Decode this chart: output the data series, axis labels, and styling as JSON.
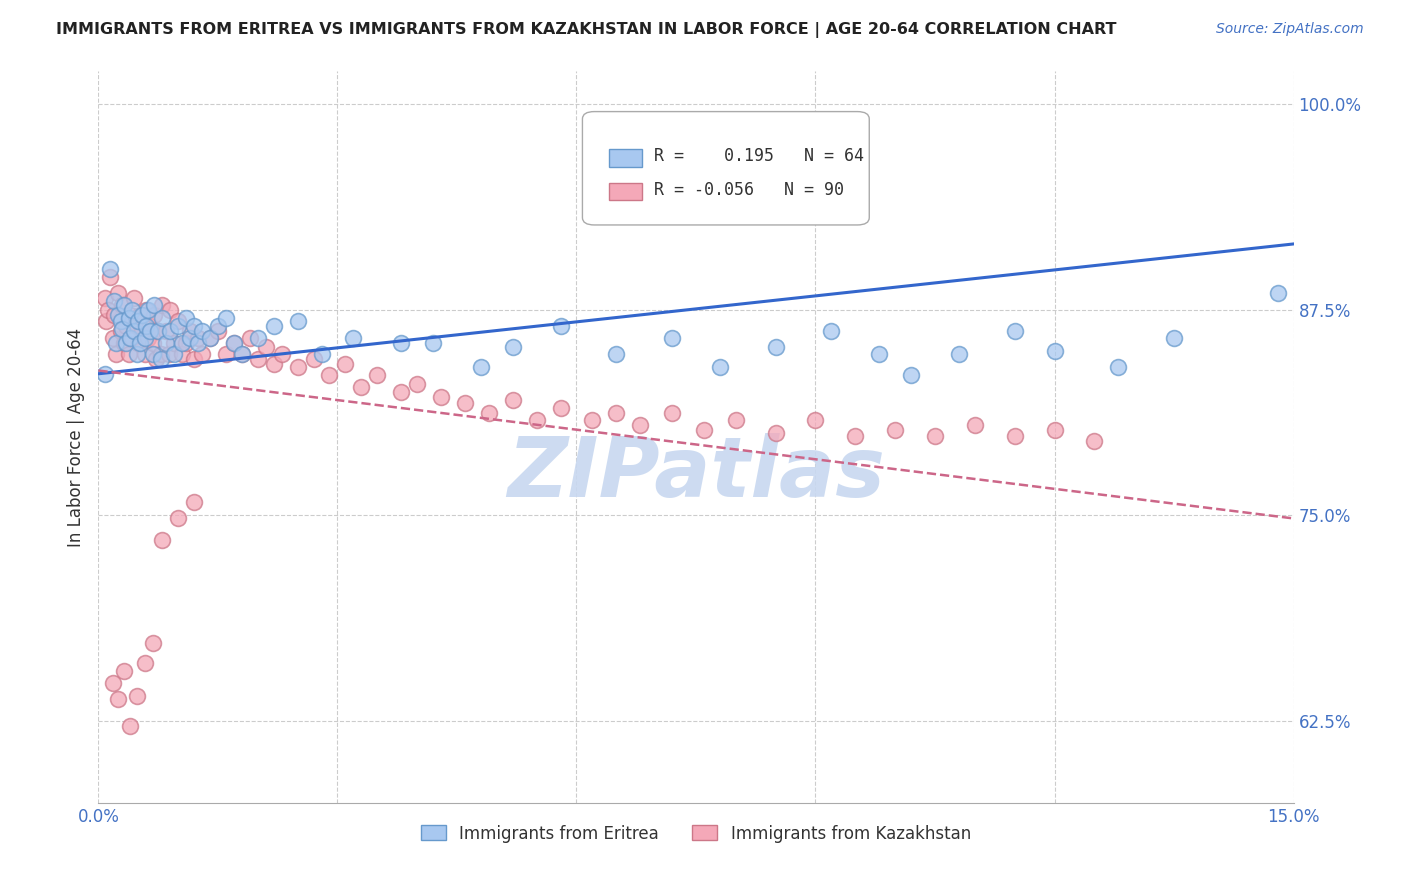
{
  "title": "IMMIGRANTS FROM ERITREA VS IMMIGRANTS FROM KAZAKHSTAN IN LABOR FORCE | AGE 20-64 CORRELATION CHART",
  "source": "Source: ZipAtlas.com",
  "ylabel": "In Labor Force | Age 20-64",
  "xlim": [
    0.0,
    0.15
  ],
  "ylim": [
    0.575,
    1.02
  ],
  "yticks": [
    0.625,
    0.75,
    0.875,
    1.0
  ],
  "yticklabels": [
    "62.5%",
    "75.0%",
    "87.5%",
    "100.0%"
  ],
  "xtick_positions": [
    0.0,
    0.03,
    0.06,
    0.09,
    0.12,
    0.15
  ],
  "grid_color": "#cccccc",
  "background_color": "#ffffff",
  "axis_color": "#4472c4",
  "eritrea_color": "#a8c8f0",
  "eritrea_edge": "#6699cc",
  "kazakhstan_color": "#f4a8b8",
  "kazakhstan_edge": "#cc7788",
  "eritrea_R": 0.195,
  "eritrea_N": 64,
  "kazakhstan_R": -0.056,
  "kazakhstan_N": 90,
  "eritrea_line_color": "#3366cc",
  "kazakhstan_line_color": "#cc6688",
  "watermark": "ZIPatlas",
  "watermark_color": "#c8d8f0",
  "eritrea_x": [
    0.0008,
    0.0015,
    0.002,
    0.0022,
    0.0025,
    0.0028,
    0.003,
    0.0032,
    0.0035,
    0.0038,
    0.004,
    0.0042,
    0.0045,
    0.0048,
    0.005,
    0.0052,
    0.0055,
    0.0058,
    0.006,
    0.0062,
    0.0065,
    0.0068,
    0.007,
    0.0075,
    0.0078,
    0.008,
    0.0085,
    0.009,
    0.0095,
    0.01,
    0.0105,
    0.011,
    0.0115,
    0.012,
    0.0125,
    0.013,
    0.014,
    0.015,
    0.016,
    0.017,
    0.018,
    0.02,
    0.022,
    0.025,
    0.028,
    0.032,
    0.038,
    0.042,
    0.048,
    0.052,
    0.058,
    0.065,
    0.072,
    0.078,
    0.085,
    0.092,
    0.098,
    0.102,
    0.108,
    0.115,
    0.12,
    0.128,
    0.135,
    0.148
  ],
  "eritrea_y": [
    0.836,
    0.9,
    0.88,
    0.855,
    0.872,
    0.868,
    0.863,
    0.878,
    0.855,
    0.87,
    0.858,
    0.875,
    0.862,
    0.848,
    0.868,
    0.855,
    0.872,
    0.858,
    0.865,
    0.875,
    0.862,
    0.848,
    0.878,
    0.862,
    0.845,
    0.87,
    0.855,
    0.862,
    0.848,
    0.865,
    0.855,
    0.87,
    0.858,
    0.865,
    0.855,
    0.862,
    0.858,
    0.865,
    0.87,
    0.855,
    0.848,
    0.858,
    0.865,
    0.868,
    0.848,
    0.858,
    0.855,
    0.855,
    0.84,
    0.852,
    0.865,
    0.848,
    0.858,
    0.84,
    0.852,
    0.862,
    0.848,
    0.835,
    0.848,
    0.862,
    0.85,
    0.84,
    0.858,
    0.885
  ],
  "kazakhstan_x": [
    0.0008,
    0.001,
    0.0012,
    0.0015,
    0.0018,
    0.002,
    0.0022,
    0.0025,
    0.0028,
    0.003,
    0.0032,
    0.0035,
    0.0038,
    0.004,
    0.0042,
    0.0045,
    0.0048,
    0.005,
    0.0052,
    0.0055,
    0.0058,
    0.006,
    0.0062,
    0.0065,
    0.0068,
    0.007,
    0.0072,
    0.0075,
    0.0078,
    0.008,
    0.0085,
    0.0088,
    0.009,
    0.0095,
    0.01,
    0.0105,
    0.011,
    0.0115,
    0.012,
    0.0125,
    0.013,
    0.014,
    0.015,
    0.016,
    0.017,
    0.018,
    0.019,
    0.02,
    0.021,
    0.022,
    0.023,
    0.025,
    0.027,
    0.029,
    0.031,
    0.033,
    0.035,
    0.038,
    0.04,
    0.043,
    0.046,
    0.049,
    0.052,
    0.055,
    0.058,
    0.062,
    0.065,
    0.068,
    0.072,
    0.076,
    0.08,
    0.085,
    0.09,
    0.095,
    0.1,
    0.105,
    0.11,
    0.115,
    0.12,
    0.125,
    0.008,
    0.01,
    0.012,
    0.0018,
    0.0025,
    0.0032,
    0.004,
    0.0048,
    0.0058,
    0.0068
  ],
  "kazakhstan_y": [
    0.882,
    0.868,
    0.875,
    0.895,
    0.858,
    0.872,
    0.848,
    0.885,
    0.862,
    0.878,
    0.855,
    0.865,
    0.848,
    0.872,
    0.858,
    0.882,
    0.865,
    0.855,
    0.872,
    0.862,
    0.848,
    0.875,
    0.858,
    0.865,
    0.855,
    0.872,
    0.845,
    0.862,
    0.848,
    0.878,
    0.862,
    0.848,
    0.875,
    0.855,
    0.868,
    0.848,
    0.855,
    0.862,
    0.845,
    0.858,
    0.848,
    0.858,
    0.862,
    0.848,
    0.855,
    0.848,
    0.858,
    0.845,
    0.852,
    0.842,
    0.848,
    0.84,
    0.845,
    0.835,
    0.842,
    0.828,
    0.835,
    0.825,
    0.83,
    0.822,
    0.818,
    0.812,
    0.82,
    0.808,
    0.815,
    0.808,
    0.812,
    0.805,
    0.812,
    0.802,
    0.808,
    0.8,
    0.808,
    0.798,
    0.802,
    0.798,
    0.805,
    0.798,
    0.802,
    0.795,
    0.735,
    0.748,
    0.758,
    0.648,
    0.638,
    0.655,
    0.622,
    0.64,
    0.66,
    0.672
  ]
}
